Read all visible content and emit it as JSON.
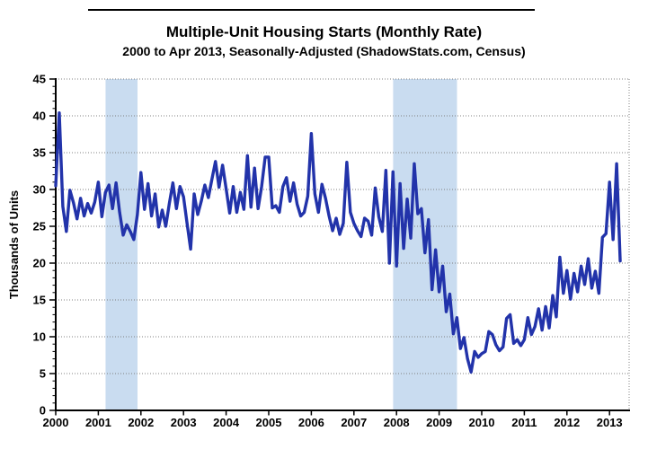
{
  "chart_data": {
    "type": "line",
    "title": "Multiple-Unit Housing Starts (Monthly Rate)",
    "subtitle": "2000 to Apr 2013, Seasonally-Adjusted (ShadowStats.com, Census)",
    "ylabel": "Thousands of Units",
    "xlabel": "",
    "ylim": [
      0,
      45
    ],
    "xlim": [
      2000,
      2013.46
    ],
    "yticks": [
      0,
      5,
      10,
      15,
      20,
      25,
      30,
      35,
      40,
      45
    ],
    "xticks": [
      2000,
      2001,
      2002,
      2003,
      2004,
      2005,
      2006,
      2007,
      2008,
      2009,
      2010,
      2011,
      2012,
      2013
    ],
    "grid": "horizontal-dotted",
    "legend": "none",
    "recession_bands": [
      [
        2001.17,
        2001.92
      ],
      [
        2007.92,
        2009.42
      ]
    ],
    "colors": {
      "line": "#2233aa",
      "recession_band": "#c9dcf0",
      "grid": "#808080",
      "frame": "#808080",
      "axis": "#000000"
    },
    "series": [
      {
        "name": "Multiple-unit housing starts, thousands of units (monthly rate)",
        "start": "2000-01",
        "end": "2013-04",
        "frequency": "monthly",
        "values": [
          30.5,
          40.4,
          27.7,
          24.3,
          29.9,
          28.2,
          26.0,
          28.8,
          26.4,
          28.1,
          26.8,
          28.3,
          31.0,
          26.3,
          29.6,
          30.6,
          27.4,
          30.9,
          26.9,
          23.8,
          25.2,
          24.3,
          23.2,
          26.6,
          32.3,
          27.3,
          30.8,
          26.4,
          29.4,
          24.9,
          27.2,
          25.0,
          28.1,
          30.9,
          27.4,
          30.4,
          29.0,
          25.4,
          21.9,
          29.4,
          26.6,
          28.4,
          30.6,
          28.9,
          31.4,
          33.8,
          30.3,
          33.3,
          30.1,
          26.8,
          30.4,
          26.9,
          29.6,
          27.3,
          34.6,
          27.6,
          32.9,
          27.4,
          30.4,
          34.4,
          34.4,
          27.5,
          27.8,
          26.9,
          30.4,
          31.6,
          28.4,
          30.9,
          28.0,
          26.4,
          26.9,
          29.1,
          37.6,
          29.4,
          26.9,
          30.7,
          28.8,
          26.4,
          24.4,
          26.1,
          23.9,
          25.4,
          33.7,
          26.9,
          25.4,
          24.4,
          23.6,
          26.1,
          25.7,
          23.8,
          30.2,
          26.3,
          24.3,
          32.6,
          20.0,
          32.4,
          19.6,
          30.8,
          22.0,
          28.7,
          23.4,
          33.5,
          26.7,
          27.4,
          21.4,
          25.9,
          16.4,
          21.8,
          16.1,
          19.6,
          13.4,
          15.8,
          10.4,
          12.6,
          8.4,
          9.9,
          7.0,
          5.2,
          8.0,
          7.2,
          7.7,
          8.0,
          10.7,
          10.3,
          8.9,
          8.1,
          8.6,
          12.5,
          13.0,
          9.1,
          9.6,
          8.8,
          9.6,
          12.6,
          10.3,
          11.4,
          13.8,
          10.9,
          14.1,
          11.2,
          15.6,
          12.7,
          20.8,
          15.9,
          19.0,
          15.1,
          18.6,
          16.1,
          19.6,
          17.1,
          20.6,
          16.6,
          18.9,
          15.9,
          23.5,
          24.0,
          31.0,
          23.2,
          33.5,
          20.3
        ]
      }
    ]
  }
}
